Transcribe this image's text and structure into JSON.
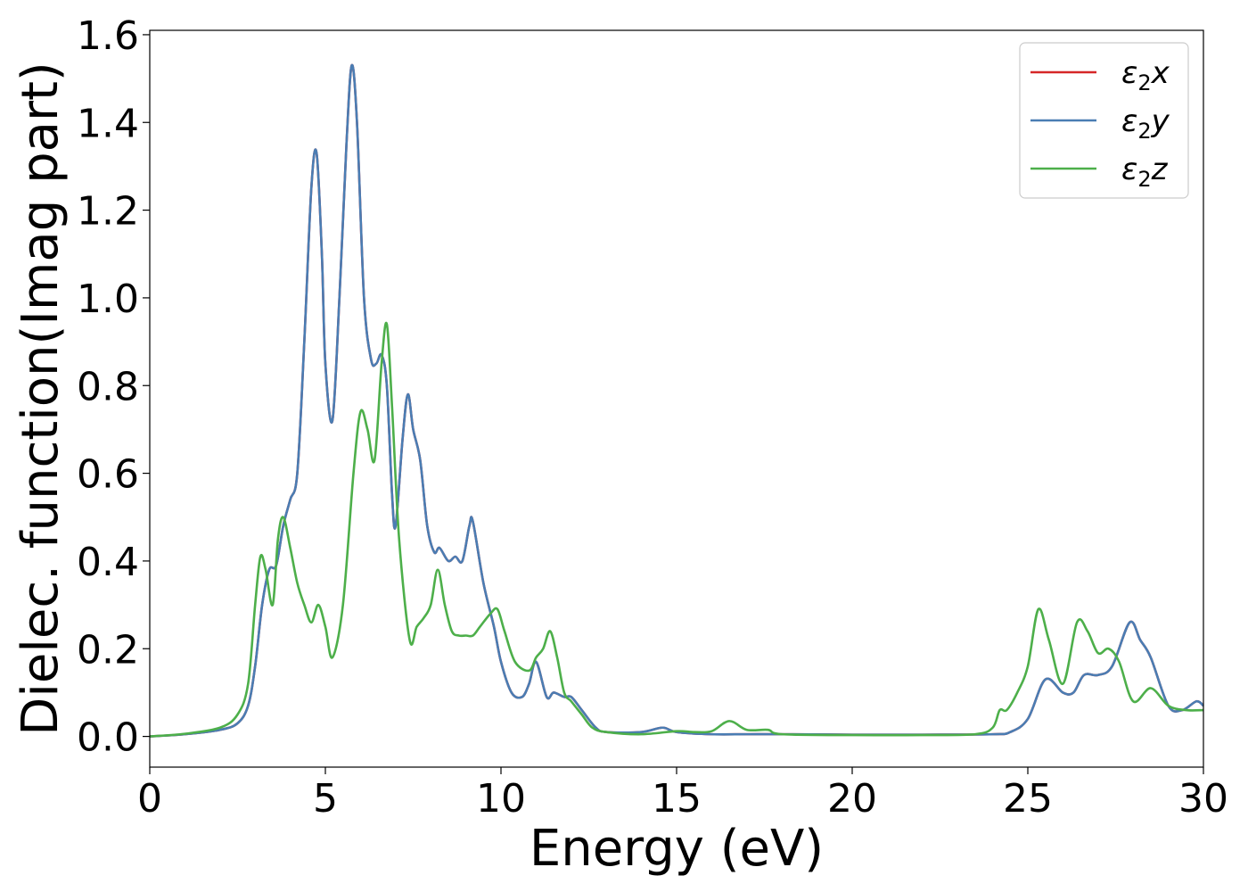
{
  "chart_data": {
    "type": "line",
    "xlabel": "Energy (eV)",
    "ylabel": "Dielec. function(Imag part)",
    "xlim": [
      0,
      30
    ],
    "ylim": [
      -0.07,
      1.61
    ],
    "xticks": [
      "0",
      "5",
      "10",
      "15",
      "20",
      "25",
      "30"
    ],
    "yticks": [
      "0.0",
      "0.2",
      "0.4",
      "0.6",
      "0.8",
      "1.0",
      "1.2",
      "1.4",
      "1.6"
    ],
    "grid": false,
    "legend_position": "top-right",
    "series": [
      {
        "name": "ε2x",
        "legend": {
          "symbol": "ε",
          "sub": "2",
          "axis": "x"
        },
        "color": "#d62728",
        "x": [
          0,
          1,
          2,
          2.5,
          2.8,
          3.0,
          3.2,
          3.4,
          3.6,
          3.8,
          4.0,
          4.2,
          4.4,
          4.6,
          4.75,
          4.9,
          5.0,
          5.2,
          5.4,
          5.6,
          5.75,
          5.9,
          6.1,
          6.3,
          6.45,
          6.6,
          6.75,
          6.9,
          7.0,
          7.2,
          7.35,
          7.5,
          7.7,
          7.9,
          8.1,
          8.25,
          8.5,
          8.7,
          8.9,
          9.1,
          9.2,
          9.5,
          9.8,
          10.0,
          10.3,
          10.6,
          10.8,
          11.0,
          11.3,
          11.5,
          11.8,
          12.0,
          12.3,
          12.7,
          13.0,
          14.0,
          14.6,
          15.0,
          16.0,
          17.0,
          18.0,
          20.0,
          22.0,
          24.0,
          24.5,
          25.0,
          25.5,
          26.0,
          26.3,
          26.6,
          27.0,
          27.4,
          27.9,
          28.2,
          28.5,
          29.0,
          29.4,
          29.8,
          30.0
        ],
        "values": [
          0.0,
          0.005,
          0.015,
          0.03,
          0.07,
          0.16,
          0.3,
          0.38,
          0.39,
          0.48,
          0.54,
          0.6,
          0.9,
          1.25,
          1.33,
          1.1,
          0.85,
          0.72,
          1.0,
          1.35,
          1.53,
          1.4,
          1.0,
          0.86,
          0.85,
          0.87,
          0.8,
          0.55,
          0.48,
          0.68,
          0.78,
          0.7,
          0.63,
          0.48,
          0.42,
          0.43,
          0.4,
          0.41,
          0.4,
          0.48,
          0.49,
          0.35,
          0.25,
          0.17,
          0.1,
          0.09,
          0.12,
          0.17,
          0.09,
          0.1,
          0.09,
          0.09,
          0.06,
          0.02,
          0.01,
          0.01,
          0.02,
          0.01,
          0.005,
          0.005,
          0.005,
          0.004,
          0.004,
          0.005,
          0.01,
          0.04,
          0.13,
          0.1,
          0.1,
          0.14,
          0.14,
          0.16,
          0.26,
          0.22,
          0.18,
          0.07,
          0.06,
          0.08,
          0.07
        ]
      },
      {
        "name": "ε2y",
        "legend": {
          "symbol": "ε",
          "sub": "2",
          "axis": "y"
        },
        "color": "#4a7db3",
        "x": [
          0,
          1,
          2,
          2.5,
          2.8,
          3.0,
          3.2,
          3.4,
          3.6,
          3.8,
          4.0,
          4.2,
          4.4,
          4.6,
          4.75,
          4.9,
          5.0,
          5.2,
          5.4,
          5.6,
          5.75,
          5.9,
          6.1,
          6.3,
          6.45,
          6.6,
          6.75,
          6.9,
          7.0,
          7.2,
          7.35,
          7.5,
          7.7,
          7.9,
          8.1,
          8.25,
          8.5,
          8.7,
          8.9,
          9.1,
          9.2,
          9.5,
          9.8,
          10.0,
          10.3,
          10.6,
          10.8,
          11.0,
          11.3,
          11.5,
          11.8,
          12.0,
          12.3,
          12.7,
          13.0,
          14.0,
          14.6,
          15.0,
          16.0,
          17.0,
          18.0,
          20.0,
          22.0,
          24.0,
          24.5,
          25.0,
          25.5,
          26.0,
          26.3,
          26.6,
          27.0,
          27.4,
          27.9,
          28.2,
          28.5,
          29.0,
          29.4,
          29.8,
          30.0
        ],
        "values": [
          0.0,
          0.005,
          0.015,
          0.03,
          0.07,
          0.16,
          0.3,
          0.38,
          0.39,
          0.48,
          0.54,
          0.6,
          0.9,
          1.25,
          1.33,
          1.1,
          0.85,
          0.72,
          1.0,
          1.35,
          1.53,
          1.4,
          1.0,
          0.86,
          0.85,
          0.87,
          0.8,
          0.55,
          0.48,
          0.68,
          0.78,
          0.7,
          0.63,
          0.48,
          0.42,
          0.43,
          0.4,
          0.41,
          0.4,
          0.48,
          0.49,
          0.35,
          0.25,
          0.17,
          0.1,
          0.09,
          0.12,
          0.17,
          0.09,
          0.1,
          0.09,
          0.09,
          0.06,
          0.02,
          0.01,
          0.01,
          0.02,
          0.01,
          0.005,
          0.005,
          0.005,
          0.004,
          0.004,
          0.005,
          0.01,
          0.04,
          0.13,
          0.1,
          0.1,
          0.14,
          0.14,
          0.16,
          0.26,
          0.22,
          0.18,
          0.07,
          0.06,
          0.08,
          0.07
        ]
      },
      {
        "name": "ε2z",
        "legend": {
          "symbol": "ε",
          "sub": "2",
          "axis": "z"
        },
        "color": "#4daf4a",
        "x": [
          0,
          1,
          2,
          2.5,
          2.8,
          3.0,
          3.15,
          3.3,
          3.5,
          3.65,
          3.8,
          4.0,
          4.2,
          4.4,
          4.6,
          4.8,
          5.0,
          5.2,
          5.5,
          5.8,
          6.0,
          6.2,
          6.4,
          6.6,
          6.75,
          6.9,
          7.1,
          7.4,
          7.6,
          7.8,
          8.0,
          8.2,
          8.4,
          8.6,
          8.8,
          9.0,
          9.2,
          9.4,
          9.7,
          9.9,
          10.1,
          10.4,
          10.8,
          11.0,
          11.2,
          11.4,
          11.6,
          11.8,
          12.0,
          12.3,
          12.6,
          13.0,
          14.0,
          15.0,
          15.5,
          16.0,
          16.5,
          17.0,
          17.6,
          18.0,
          20.0,
          22.0,
          23.5,
          24.0,
          24.2,
          24.4,
          24.7,
          25.0,
          25.3,
          25.6,
          26.0,
          26.4,
          26.7,
          27.0,
          27.3,
          27.6,
          28.0,
          28.5,
          29.0,
          29.5,
          30.0
        ],
        "values": [
          0.0,
          0.006,
          0.02,
          0.05,
          0.12,
          0.3,
          0.41,
          0.38,
          0.3,
          0.45,
          0.5,
          0.43,
          0.35,
          0.3,
          0.26,
          0.3,
          0.25,
          0.18,
          0.3,
          0.6,
          0.74,
          0.7,
          0.63,
          0.85,
          0.94,
          0.75,
          0.45,
          0.22,
          0.25,
          0.27,
          0.3,
          0.38,
          0.3,
          0.24,
          0.23,
          0.23,
          0.23,
          0.25,
          0.28,
          0.29,
          0.24,
          0.17,
          0.15,
          0.18,
          0.2,
          0.24,
          0.18,
          0.1,
          0.08,
          0.05,
          0.02,
          0.01,
          0.005,
          0.012,
          0.01,
          0.012,
          0.035,
          0.015,
          0.015,
          0.005,
          0.003,
          0.003,
          0.005,
          0.02,
          0.06,
          0.06,
          0.1,
          0.16,
          0.29,
          0.22,
          0.12,
          0.26,
          0.24,
          0.19,
          0.2,
          0.17,
          0.08,
          0.11,
          0.07,
          0.06,
          0.06
        ]
      }
    ]
  }
}
